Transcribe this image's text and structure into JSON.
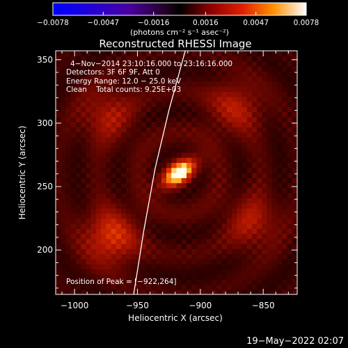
{
  "colorbar": {
    "ticks": [
      {
        "value": -0.0078,
        "label": "−0.0078"
      },
      {
        "value": -0.0047,
        "label": "−0.0047"
      },
      {
        "value": -0.0016,
        "label": "−0.0016"
      },
      {
        "value": 0.0016,
        "label": "0.0016"
      },
      {
        "value": 0.0047,
        "label": "0.0047"
      },
      {
        "value": 0.0078,
        "label": "0.0078"
      }
    ],
    "range": [
      -0.0078,
      0.0078
    ],
    "units": "(photons cm⁻² s⁻¹ asec⁻²)"
  },
  "chart_data": {
    "type": "heatmap",
    "title": "Reconstructed RHESSI Image",
    "xlabel": "Heliocentric X (arcsec)",
    "ylabel": "Heliocentric Y (arcsec)",
    "xlim": [
      -1015,
      -823
    ],
    "ylim": [
      165,
      357
    ],
    "xticks": [
      {
        "value": -1000,
        "label": "−1000"
      },
      {
        "value": -950,
        "label": "−950"
      },
      {
        "value": -900,
        "label": "−900"
      },
      {
        "value": -850,
        "label": "−850"
      }
    ],
    "yticks": [
      {
        "value": 200,
        "label": "200"
      },
      {
        "value": 250,
        "label": "250"
      },
      {
        "value": 300,
        "label": "300"
      },
      {
        "value": 350,
        "label": "350"
      }
    ],
    "info_lines": [
      "4−Nov−2014 23:10:16.000 to 23:16:16.000",
      "Detectors: 3F 6F 9F, Att 0",
      "Energy Range: 12.0 − 25.0 keV",
      "Clean    Total counts: 9.25E+03"
    ],
    "peak_label": "Position of Peak = [−922,264]",
    "peak": [
      -922,
      264
    ],
    "sources": [
      {
        "x": -917,
        "y": 261,
        "peak": 0.0078
      },
      {
        "x": -972,
        "y": 210,
        "peak": 0.0036
      },
      {
        "x": -975,
        "y": 307,
        "peak": 0.0024
      },
      {
        "x": -872,
        "y": 313,
        "peak": 0.0025
      },
      {
        "x": -858,
        "y": 222,
        "peak": 0.0024
      }
    ],
    "limb_points": [
      [
        -912,
        357
      ],
      [
        -925,
        310
      ],
      [
        -936,
        264
      ],
      [
        -945,
        215
      ],
      [
        -953,
        165
      ]
    ]
  },
  "timestamp": "19−May−2022 02:07"
}
